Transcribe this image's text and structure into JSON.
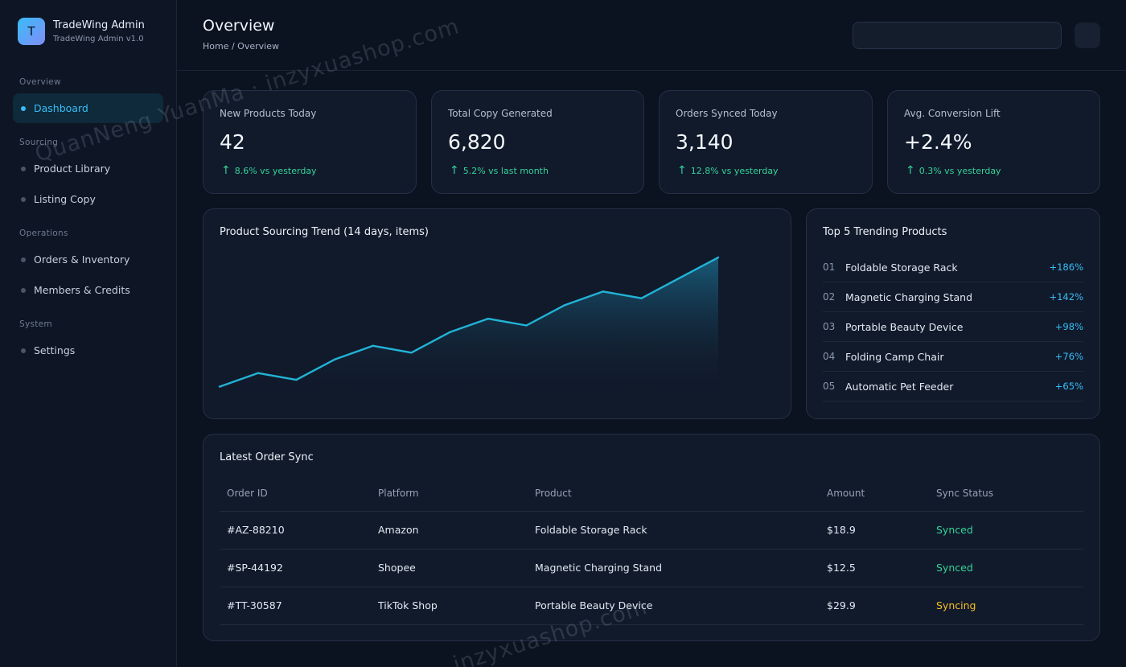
{
  "brand": {
    "logo": "T",
    "name": "TradeWing Admin",
    "version": "TradeWing Admin v1.0"
  },
  "sidebar": {
    "groups": [
      {
        "label": "Overview",
        "items": [
          {
            "label": "Dashboard",
            "active": true
          }
        ]
      },
      {
        "label": "Sourcing",
        "items": [
          {
            "label": "Product Library"
          },
          {
            "label": "Listing Copy"
          }
        ]
      },
      {
        "label": "Operations",
        "items": [
          {
            "label": "Orders & Inventory"
          },
          {
            "label": "Members & Credits"
          }
        ]
      },
      {
        "label": "System",
        "items": [
          {
            "label": "Settings"
          }
        ]
      }
    ]
  },
  "header": {
    "title": "Overview",
    "breadcrumb": "Home / Overview",
    "search_value": ""
  },
  "stats": [
    {
      "label": "New Products Today",
      "value": "42",
      "trend": "8.6% vs yesterday"
    },
    {
      "label": "Total Copy Generated",
      "value": "6,820",
      "trend": "5.2% vs last month"
    },
    {
      "label": "Orders Synced Today",
      "value": "3,140",
      "trend": "12.8% vs yesterday"
    },
    {
      "label": "Avg. Conversion Lift",
      "value": "+2.4%",
      "trend": "0.3% vs yesterday"
    }
  ],
  "trend_chart": {
    "title": "Product Sourcing Trend (14 days, items)"
  },
  "chart_data": {
    "type": "area",
    "title": "Product Sourcing Trend (14 days, items)",
    "x": [
      1,
      2,
      3,
      4,
      5,
      6,
      7,
      8,
      9,
      10,
      11,
      12,
      13,
      14
    ],
    "y": [
      10,
      14,
      12,
      18,
      22,
      20,
      26,
      30,
      28,
      34,
      38,
      36,
      42,
      48
    ],
    "ylim": [
      8,
      48
    ],
    "grid": false,
    "legend": "none",
    "color": "#22b3d6"
  },
  "top_products": {
    "title": "Top 5 Trending Products",
    "items": [
      {
        "rank": "01",
        "name": "Foldable Storage Rack",
        "pct": "+186%"
      },
      {
        "rank": "02",
        "name": "Magnetic Charging Stand",
        "pct": "+142%"
      },
      {
        "rank": "03",
        "name": "Portable Beauty Device",
        "pct": "+98%"
      },
      {
        "rank": "04",
        "name": "Folding Camp Chair",
        "pct": "+76%"
      },
      {
        "rank": "05",
        "name": "Automatic Pet Feeder",
        "pct": "+65%"
      }
    ]
  },
  "orders": {
    "title": "Latest Order Sync",
    "columns": [
      "Order ID",
      "Platform",
      "Product",
      "Amount",
      "Sync Status"
    ],
    "rows": [
      {
        "id": "#AZ-88210",
        "platform": "Amazon",
        "product": "Foldable Storage Rack",
        "amount": "$18.9",
        "status": "Synced",
        "state": "synced"
      },
      {
        "id": "#SP-44192",
        "platform": "Shopee",
        "product": "Magnetic Charging Stand",
        "amount": "$12.5",
        "status": "Synced",
        "state": "synced"
      },
      {
        "id": "#TT-30587",
        "platform": "TikTok Shop",
        "product": "Portable Beauty Device",
        "amount": "$29.9",
        "status": "Syncing",
        "state": "syncing"
      }
    ]
  },
  "watermarks": [
    "QuanNeng YuanMa · inzyxuashop.com",
    "inzyxuashop.com"
  ],
  "colors": {
    "accent": "#38bdf8",
    "success": "#34d399",
    "warning": "#fbbf24",
    "line": "#22b3d6"
  }
}
